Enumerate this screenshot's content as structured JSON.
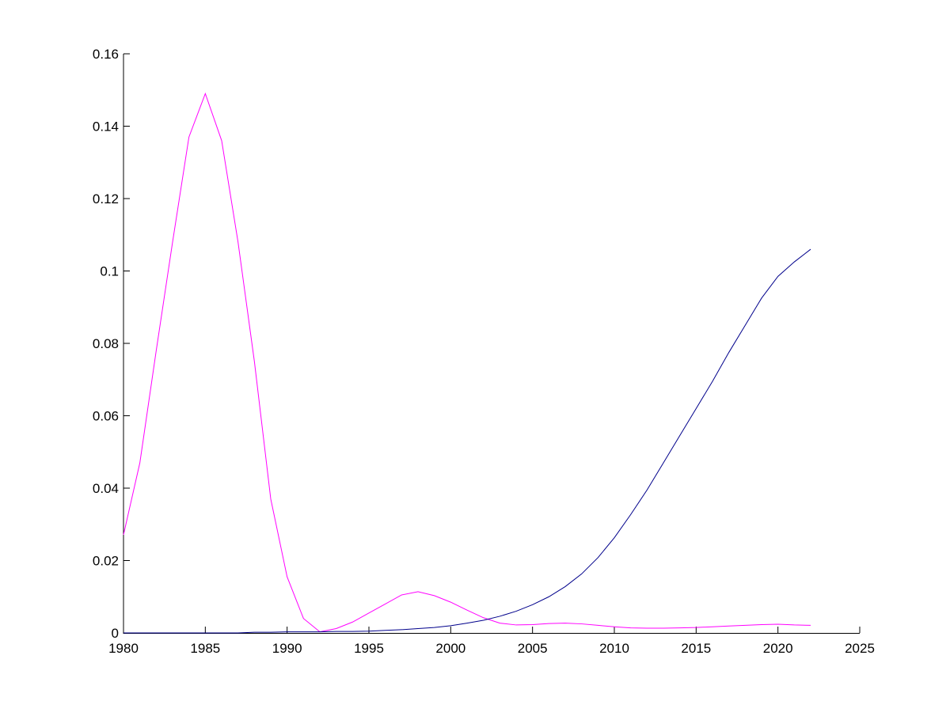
{
  "chart_data": {
    "type": "line",
    "x": [
      1980,
      1981,
      1982,
      1983,
      1984,
      1985,
      1986,
      1987,
      1988,
      1989,
      1990,
      1991,
      1992,
      1993,
      1994,
      1995,
      1996,
      1997,
      1998,
      1999,
      2000,
      2001,
      2002,
      2003,
      2004,
      2005,
      2006,
      2007,
      2008,
      2009,
      2010,
      2011,
      2012,
      2013,
      2014,
      2015,
      2016,
      2017,
      2018,
      2019,
      2020,
      2021,
      2022
    ],
    "series": [
      {
        "color": "#ff00ff",
        "values": [
          0.0271,
          0.047,
          0.078,
          0.108,
          0.137,
          0.149,
          0.136,
          0.108,
          0.075,
          0.037,
          0.0155,
          0.004,
          0.0003,
          0.0012,
          0.003,
          0.0055,
          0.008,
          0.0105,
          0.0114,
          0.0103,
          0.0085,
          0.0063,
          0.0042,
          0.0027,
          0.0022,
          0.0023,
          0.0026,
          0.0027,
          0.0025,
          0.0021,
          0.0017,
          0.0014,
          0.0013,
          0.0013,
          0.0014,
          0.0015,
          0.0017,
          0.0019,
          0.0021,
          0.0023,
          0.0024,
          0.0022,
          0.0021
        ]
      },
      {
        "color": "#00008b",
        "values": [
          0,
          0,
          0,
          0,
          0,
          0,
          0,
          0,
          0.0002,
          0.0002,
          0.0003,
          0.0003,
          0.0003,
          0.0004,
          0.0004,
          0.0005,
          0.0007,
          0.0009,
          0.0012,
          0.0015,
          0.002,
          0.0027,
          0.0035,
          0.0046,
          0.006,
          0.0078,
          0.01,
          0.0128,
          0.0163,
          0.0208,
          0.0263,
          0.0327,
          0.0395,
          0.047,
          0.0545,
          0.062,
          0.0695,
          0.0775,
          0.085,
          0.0925,
          0.0985,
          0.1025,
          0.106
        ]
      }
    ],
    "xlim": [
      1980,
      2025
    ],
    "xticks": [
      1980,
      1985,
      1990,
      1995,
      2000,
      2005,
      2010,
      2015,
      2020,
      2025
    ],
    "ylim": [
      0,
      0.16
    ],
    "yticks": [
      0,
      0.02,
      0.04,
      0.06,
      0.08,
      0.1,
      0.12,
      0.14,
      0.16
    ],
    "grid": false
  }
}
